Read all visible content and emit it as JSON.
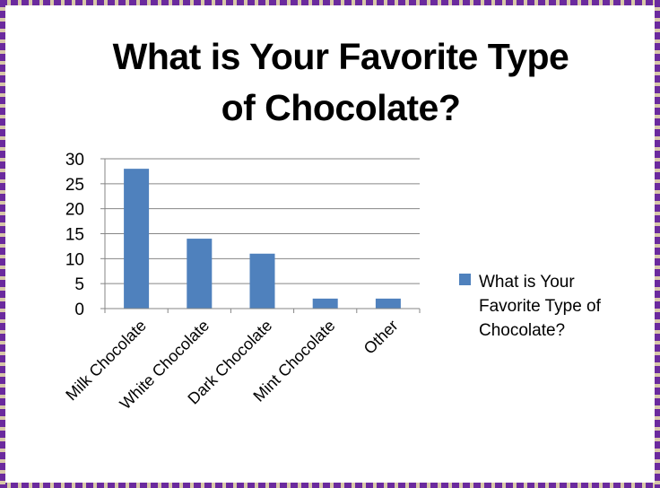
{
  "colors": {
    "bar": "#4F81BD",
    "border_purple": "#6B2A9E",
    "border_tan": "#D8C9A8",
    "grid": "#868686"
  },
  "chart_data": {
    "type": "bar",
    "title_lines": [
      "What is Your Favorite Type",
      "of Chocolate?"
    ],
    "categories": [
      "Milk Chocolate",
      "White Chocolate",
      "Dark Chocolate",
      "Mint Chocolate",
      "Other"
    ],
    "series": [
      {
        "name": "What is Your Favorite Type of Chocolate?",
        "name_lines": [
          "What is Your",
          "Favorite Type  of",
          "Chocolate?"
        ],
        "values": [
          28,
          14,
          11,
          2,
          2
        ]
      }
    ],
    "ylim": [
      0,
      30
    ],
    "yticks": [
      0,
      5,
      10,
      15,
      20,
      25,
      30
    ],
    "grid": true,
    "legend": "right"
  }
}
